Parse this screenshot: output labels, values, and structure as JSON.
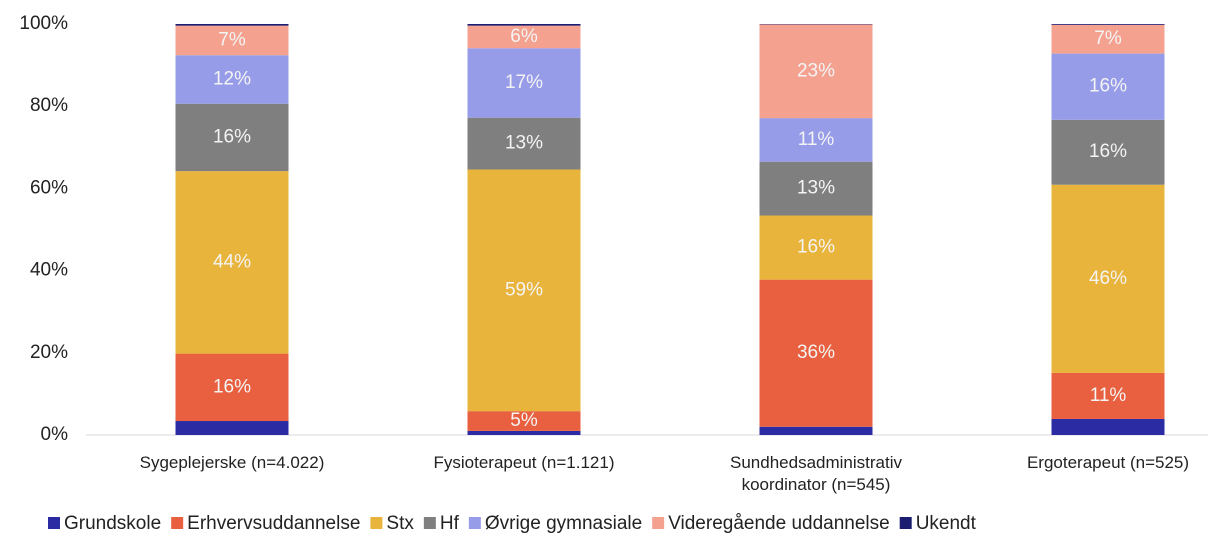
{
  "chart_data": {
    "type": "stacked_bar",
    "categories": [
      "Sygeplejerske (n=4.022)",
      "Fysioterapeut (n=1.121)",
      "Sundhedsadministrativ koordinator (n=545)",
      "Ergoterapeut (n=525)"
    ],
    "series": [
      {
        "name": "Grundskole",
        "color": "#2b2ba3",
        "values": [
          3.4,
          1.0,
          2.0,
          3.9
        ],
        "value_labels": [
          null,
          null,
          null,
          null
        ]
      },
      {
        "name": "Erhvervsuddannelse",
        "color": "#e8603f",
        "values": [
          16.4,
          4.8,
          35.8,
          11.2
        ],
        "value_labels": [
          "16%",
          "5%",
          "36%",
          "11%"
        ]
      },
      {
        "name": "Stx",
        "color": "#e9b43b",
        "values": [
          44.4,
          58.8,
          15.6,
          45.8
        ],
        "value_labels": [
          "44%",
          "59%",
          "16%",
          "46%"
        ]
      },
      {
        "name": "Hf",
        "color": "#7f7f7f",
        "values": [
          16.4,
          12.6,
          13.1,
          15.8
        ],
        "value_labels": [
          "16%",
          "13%",
          "13%",
          "16%"
        ]
      },
      {
        "name": "Øvrige gymnasiale",
        "color": "#979ce9",
        "values": [
          11.8,
          16.9,
          10.6,
          16.1
        ],
        "value_labels": [
          "12%",
          "17%",
          "11%",
          "16%"
        ]
      },
      {
        "name": "Videregående uddannelse",
        "color": "#f4a190",
        "values": [
          7.2,
          5.5,
          22.8,
          7.0
        ],
        "value_labels": [
          "7%",
          "6%",
          "23%",
          "7%"
        ]
      },
      {
        "name": "Ukendt",
        "color": "#1c1c70",
        "values": [
          0.4,
          0.4,
          0.1,
          0.2
        ],
        "value_labels": [
          null,
          null,
          null,
          null
        ]
      }
    ],
    "ylim": [
      0,
      100
    ],
    "yticks": [
      {
        "value": 0,
        "label": "0%"
      },
      {
        "value": 20,
        "label": "20%"
      },
      {
        "value": 40,
        "label": "40%"
      },
      {
        "value": 60,
        "label": "60%"
      },
      {
        "value": 80,
        "label": "80%"
      },
      {
        "value": 100,
        "label": "100%"
      }
    ],
    "legend": "bottom"
  }
}
